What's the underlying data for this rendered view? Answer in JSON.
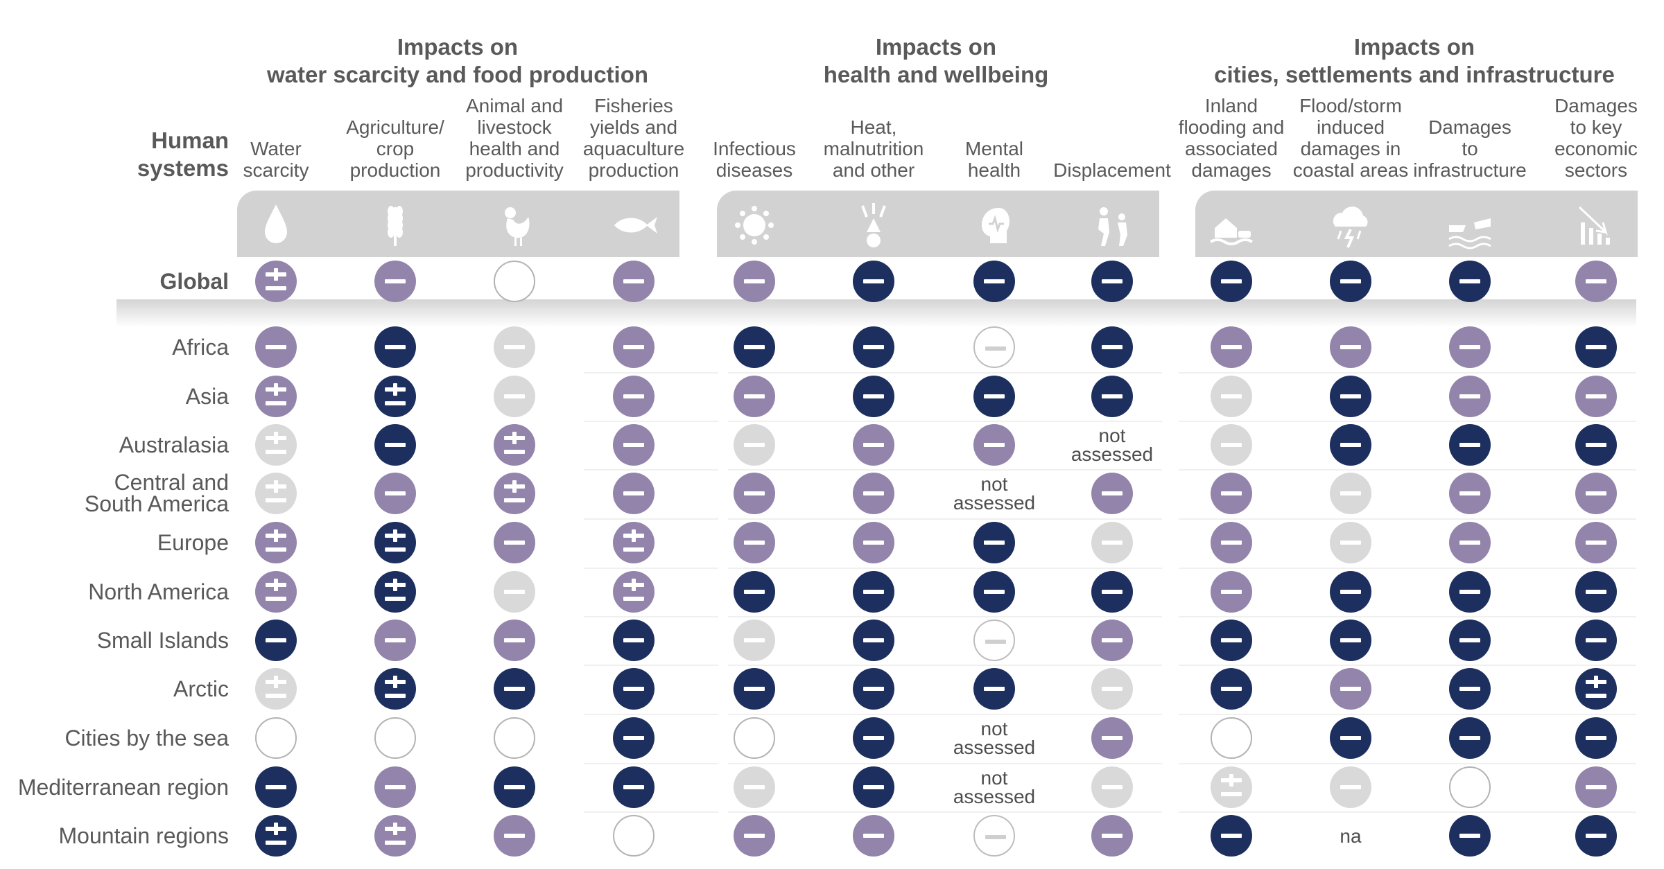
{
  "groups": [
    {
      "title": "Impacts on\nwater scarcity and food production"
    },
    {
      "title": "Impacts on\nhealth and wellbeing"
    },
    {
      "title": "Impacts on\ncities, settlements and infrastructure"
    }
  ],
  "row_header": "Human\nsystems",
  "columns": [
    {
      "label": "Water\nscarcity",
      "icon": "water-drop-icon"
    },
    {
      "label": "Agriculture/\ncrop\nproduction",
      "icon": "wheat-icon"
    },
    {
      "label": "Animal and\nlivestock\nhealth and\nproductivity",
      "icon": "chicken-icon"
    },
    {
      "label": "Fisheries\nyields and\naquaculture\nproduction",
      "icon": "fish-icon"
    },
    {
      "label": "Infectious\ndiseases",
      "icon": "virus-icon"
    },
    {
      "label": "Heat,\nmalnutrition\nand other",
      "icon": "heat-person-icon"
    },
    {
      "label": "Mental\nhealth",
      "icon": "mental-health-head-icon"
    },
    {
      "label": "Displacement",
      "icon": "displacement-people-icon"
    },
    {
      "label": "Inland\nflooding and\nassociated\ndamages",
      "icon": "flooded-house-icon"
    },
    {
      "label": "Flood/storm\ninduced\ndamages in\ncoastal areas",
      "icon": "storm-cloud-icon"
    },
    {
      "label": "Damages\nto\ninfrastructure",
      "icon": "broken-bridge-icon"
    },
    {
      "label": "Damages\nto key\neconomic\nsectors",
      "icon": "declining-bars-icon"
    }
  ],
  "legend_codes": {
    "M": "purple minus",
    "P": "purple plus-minus",
    "N": "navy minus",
    "Q": "navy plus-minus",
    "G": "light grey minus",
    "H": "light grey plus-minus",
    "O": "empty circle",
    "C": "circled minus",
    "X": "not assessed",
    "A": "na"
  },
  "status_text": {
    "X": "not\nassessed",
    "A": "na"
  },
  "colors": {
    "M": "#9384ab",
    "P": "#9384ab",
    "N": "#1c2f5e",
    "Q": "#1c2f5e",
    "G": "#d9d9d9",
    "H": "#d9d9d9",
    "icon_band": "#d2d2d2",
    "icon_fg": "#ffffff"
  },
  "rows": [
    {
      "label": "Global",
      "cells": [
        "P",
        "M",
        "O",
        "M",
        "M",
        "N",
        "N",
        "N",
        "N",
        "N",
        "N",
        "M"
      ]
    },
    {
      "label": "Africa",
      "cells": [
        "M",
        "N",
        "G",
        "M",
        "N",
        "N",
        "C",
        "N",
        "M",
        "M",
        "M",
        "N"
      ]
    },
    {
      "label": "Asia",
      "cells": [
        "P",
        "Q",
        "G",
        "M",
        "M",
        "N",
        "N",
        "N",
        "G",
        "N",
        "M",
        "M"
      ]
    },
    {
      "label": "Australasia",
      "cells": [
        "H",
        "N",
        "P",
        "M",
        "G",
        "M",
        "M",
        "X",
        "G",
        "N",
        "N",
        "N"
      ]
    },
    {
      "label": "Central and\nSouth America",
      "cells": [
        "H",
        "M",
        "P",
        "M",
        "M",
        "M",
        "X",
        "M",
        "M",
        "G",
        "M",
        "M"
      ]
    },
    {
      "label": "Europe",
      "cells": [
        "P",
        "Q",
        "M",
        "P",
        "M",
        "M",
        "N",
        "G",
        "M",
        "G",
        "M",
        "M"
      ]
    },
    {
      "label": "North America",
      "cells": [
        "P",
        "Q",
        "G",
        "P",
        "N",
        "N",
        "N",
        "N",
        "M",
        "N",
        "N",
        "N"
      ]
    },
    {
      "label": "Small Islands",
      "cells": [
        "N",
        "M",
        "M",
        "N",
        "G",
        "N",
        "C",
        "M",
        "N",
        "N",
        "N",
        "N"
      ]
    },
    {
      "label": "Arctic",
      "cells": [
        "H",
        "Q",
        "N",
        "N",
        "N",
        "N",
        "N",
        "G",
        "N",
        "M",
        "N",
        "Q"
      ]
    },
    {
      "label": "Cities by the sea",
      "cells": [
        "O",
        "O",
        "O",
        "N",
        "O",
        "N",
        "X",
        "M",
        "O",
        "N",
        "N",
        "N"
      ]
    },
    {
      "label": "Mediterranean region",
      "cells": [
        "N",
        "M",
        "N",
        "N",
        "G",
        "N",
        "X",
        "G",
        "H",
        "G",
        "O",
        "M"
      ]
    },
    {
      "label": "Mountain regions",
      "cells": [
        "Q",
        "P",
        "M",
        "O",
        "M",
        "M",
        "C",
        "M",
        "N",
        "A",
        "N",
        "N"
      ]
    }
  ]
}
